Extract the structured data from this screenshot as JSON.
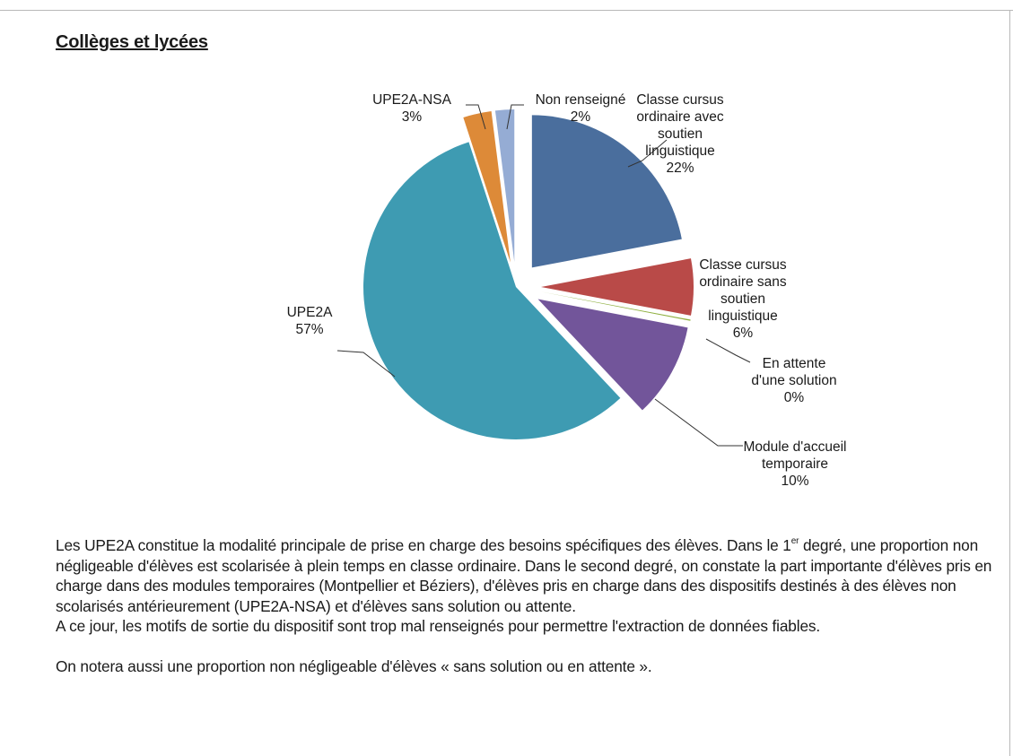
{
  "heading": "Collèges et lycées",
  "chart_data": {
    "type": "pie",
    "title": "",
    "categories": [
      "Classe cursus ordinaire avec soutien linguistique",
      "Classe cursus ordinaire sans soutien linguistique",
      "En attente d'une solution",
      "Module d'accueil temporaire",
      "UPE2A",
      "UPE2A-NSA",
      "Non renseigné"
    ],
    "values": [
      22,
      6,
      0,
      10,
      57,
      3,
      2
    ],
    "value_labels": [
      "22%",
      "6%",
      "0%",
      "10%",
      "57%",
      "3%",
      "2%"
    ],
    "colors": [
      "#4a6e9d",
      "#b94a48",
      "#8fb040",
      "#72559a",
      "#3e9bb2",
      "#dd8a38",
      "#95acd4"
    ],
    "exploded": true,
    "start_angle": "12 o'clock, clockwise",
    "legend": "none (data labels with leader lines)"
  },
  "paragraph": {
    "line1_pre": "Les UPE2A constitue la modalité principale de prise en charge des besoins spécifiques des élèves. Dans le 1",
    "line1_sup": "er",
    "line1_post": " degré, une proportion non négligeable d'élèves est scolarisée à plein temps en classe ordinaire. Dans le second degré, on constate la part importante d'élèves pris en charge dans des modules temporaires (Montpellier et Béziers), d'élèves pris en charge dans des dispositifs destinés à des élèves non scolarisés antérieurement (UPE2A-NSA) et d'élèves sans solution ou attente.",
    "line2": "A ce jour, les motifs de sortie du dispositif sont trop mal renseignés pour permettre l'extraction de données fiables.",
    "line3": "On notera aussi une proportion non négligeable d'élèves « sans solution ou en attente »."
  }
}
